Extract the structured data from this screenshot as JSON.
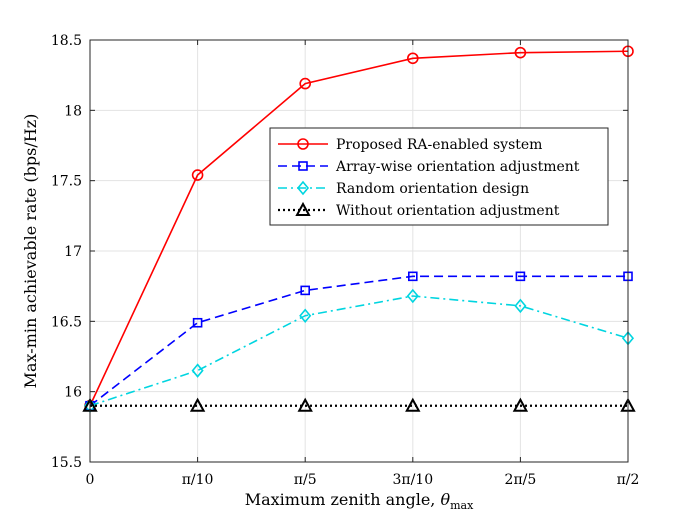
{
  "chart_data": {
    "type": "line",
    "title": "",
    "xlabel_prefix": "Maximum zenith angle, ",
    "xlabel_symbol": "θ",
    "xlabel_subscript": "max",
    "ylabel": "Max-min achievable rate (bps/Hz)",
    "x": [
      0,
      0.1,
      0.2,
      0.3,
      0.4,
      0.5
    ],
    "x_tick_labels": [
      "0",
      "π/10",
      "π/5",
      "3π/10",
      "2π/5",
      "π/2"
    ],
    "xlim": [
      0,
      0.5
    ],
    "ylim": [
      15.5,
      18.5
    ],
    "y_ticks": [
      15.5,
      16,
      16.5,
      17,
      17.5,
      18,
      18.5
    ],
    "y_tick_labels": [
      "15.5",
      "16",
      "16.5",
      "17",
      "17.5",
      "18",
      "18.5"
    ],
    "grid": true,
    "legend_position": "right-middle",
    "series": [
      {
        "name": "Proposed RA-enabled system",
        "values": [
          15.9,
          17.54,
          18.19,
          18.37,
          18.41,
          18.42
        ],
        "color": "#ff0000",
        "dash": "solid",
        "marker": "circle"
      },
      {
        "name": "Array-wise orientation adjustment",
        "values": [
          15.9,
          16.49,
          16.72,
          16.82,
          16.82,
          16.82
        ],
        "color": "#0000ff",
        "dash": "dashed",
        "marker": "square"
      },
      {
        "name": "Random orientation design",
        "values": [
          15.9,
          16.15,
          16.54,
          16.68,
          16.61,
          16.38
        ],
        "color": "#00d5e0",
        "dash": "dashdot",
        "marker": "diamond"
      },
      {
        "name": "Without orientation adjustment",
        "values": [
          15.9,
          15.9,
          15.9,
          15.9,
          15.9,
          15.9
        ],
        "color": "#000000",
        "dash": "dotted",
        "marker": "triangle"
      }
    ]
  }
}
